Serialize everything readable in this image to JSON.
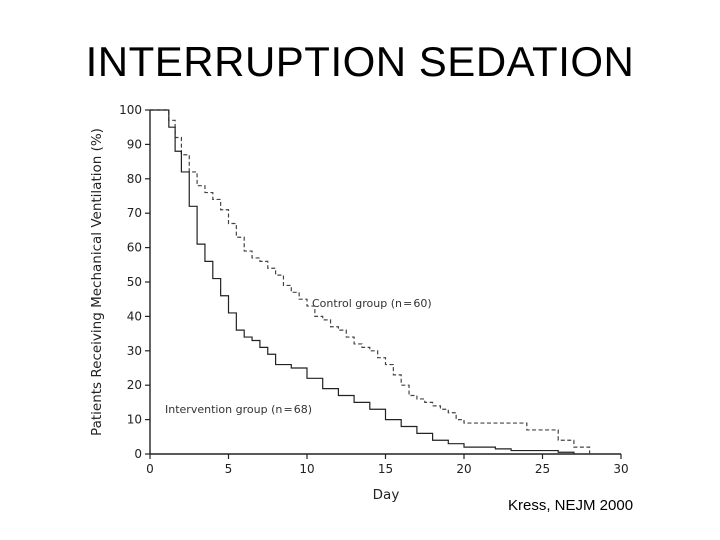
{
  "slide": {
    "title": "INTERRUPTION SEDATION",
    "citation": "Kress, NEJM 2000"
  },
  "chart_data": {
    "type": "line",
    "step": true,
    "xlabel": "Day",
    "ylabel": "Patients Receiving Mechanical Ventilation (%)",
    "xlim": [
      0,
      30
    ],
    "ylim": [
      0,
      100
    ],
    "xticks": [
      0,
      5,
      10,
      15,
      20,
      25,
      30
    ],
    "yticks": [
      0,
      10,
      20,
      30,
      40,
      50,
      60,
      70,
      80,
      90,
      100
    ],
    "grid": false,
    "legend": "none",
    "series": [
      {
        "name": "Control group (n = 60)",
        "style": "dashed",
        "color": "#444444",
        "x": [
          0,
          1.2,
          1.6,
          2.0,
          2.5,
          3.0,
          3.5,
          4.0,
          4.5,
          5.0,
          5.5,
          6.0,
          6.5,
          7.0,
          7.5,
          8.0,
          8.5,
          9.0,
          9.5,
          10.0,
          10.5,
          11.0,
          11.5,
          12.0,
          12.5,
          13.0,
          13.5,
          14.0,
          14.5,
          15.0,
          15.5,
          16.0,
          16.5,
          17.0,
          17.5,
          18.0,
          18.5,
          19.0,
          19.5,
          20.0,
          21.0,
          22.0,
          23.0,
          24.0,
          25.0,
          26.0,
          27.0,
          28.0
        ],
        "y": [
          100,
          97,
          92,
          87,
          82,
          78,
          76,
          74,
          71,
          67,
          63,
          59,
          57,
          56,
          54,
          52,
          49,
          47,
          45,
          43,
          40,
          39,
          37,
          36,
          34,
          32,
          31,
          30,
          28,
          26,
          23,
          20,
          17,
          16,
          15,
          14,
          13,
          12,
          10,
          9,
          9,
          9,
          9,
          7,
          7,
          4,
          2,
          0
        ]
      },
      {
        "name": "Intervention group (n = 68)",
        "style": "solid",
        "color": "#222222",
        "x": [
          0,
          1.2,
          1.6,
          2.0,
          2.5,
          3.0,
          3.5,
          4.0,
          4.5,
          5.0,
          5.5,
          6.0,
          6.5,
          7.0,
          7.5,
          8.0,
          9.0,
          10.0,
          11.0,
          12.0,
          13.0,
          14.0,
          15.0,
          16.0,
          17.0,
          18.0,
          19.0,
          20.0,
          21.0,
          22.0,
          23.0,
          24.0,
          25.0,
          26.0,
          27.0
        ],
        "y": [
          100,
          95,
          88,
          82,
          72,
          61,
          56,
          51,
          46,
          41,
          36,
          34,
          33,
          31,
          29,
          26,
          25,
          22,
          19,
          17,
          15,
          13,
          10,
          8,
          6,
          4,
          3,
          2,
          2,
          1.5,
          1,
          1,
          1,
          0.5,
          0
        ]
      }
    ]
  }
}
